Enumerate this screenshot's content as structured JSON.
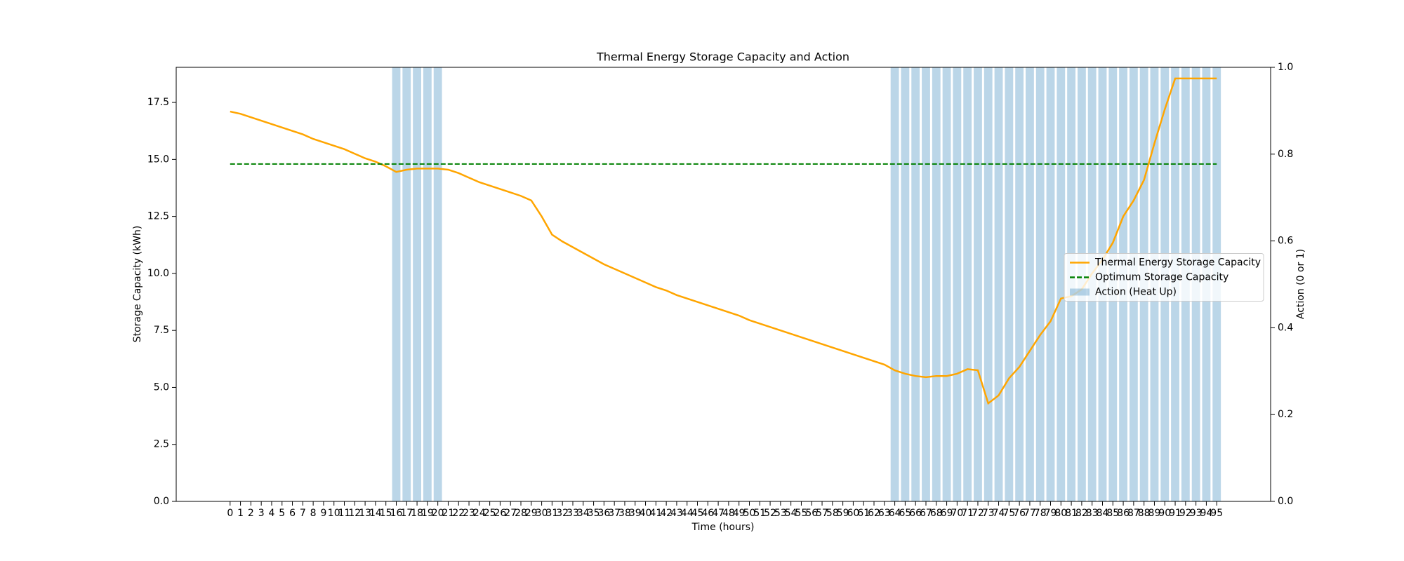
{
  "chart_data": {
    "type": "line_bar",
    "title": "Thermal Energy Storage Capacity and Action",
    "xlabel": "Time (hours)",
    "ylabel": "Storage Capacity (kWh)",
    "y2label": "Action (0 or 1)",
    "x": [
      0,
      1,
      2,
      3,
      4,
      5,
      6,
      7,
      8,
      9,
      10,
      11,
      12,
      13,
      14,
      15,
      16,
      17,
      18,
      19,
      20,
      21,
      22,
      23,
      24,
      25,
      26,
      27,
      28,
      29,
      30,
      31,
      32,
      33,
      34,
      35,
      36,
      37,
      38,
      39,
      40,
      41,
      42,
      43,
      44,
      45,
      46,
      47,
      48,
      49,
      50,
      51,
      52,
      53,
      54,
      55,
      56,
      57,
      58,
      59,
      60,
      61,
      62,
      63,
      64,
      65,
      66,
      67,
      68,
      69,
      70,
      71,
      72,
      73,
      74,
      75,
      76,
      77,
      78,
      79,
      80,
      81,
      82,
      83,
      84,
      85,
      86,
      87,
      88,
      89,
      90,
      91,
      92,
      93,
      94,
      95
    ],
    "xticks": [
      0,
      1,
      2,
      3,
      4,
      5,
      6,
      7,
      8,
      9,
      10,
      11,
      12,
      13,
      14,
      15,
      16,
      17,
      18,
      19,
      20,
      21,
      22,
      23,
      24,
      25,
      26,
      27,
      28,
      29,
      30,
      31,
      32,
      33,
      34,
      35,
      36,
      37,
      38,
      39,
      40,
      41,
      42,
      43,
      44,
      45,
      46,
      47,
      48,
      49,
      50,
      51,
      52,
      53,
      54,
      55,
      56,
      57,
      58,
      59,
      60,
      61,
      62,
      63,
      64,
      65,
      66,
      67,
      68,
      69,
      70,
      71,
      72,
      73,
      74,
      75,
      76,
      77,
      78,
      79,
      80,
      81,
      82,
      83,
      84,
      85,
      86,
      87,
      88,
      89,
      90,
      91,
      92,
      93,
      94,
      95
    ],
    "xlim": [
      -5.19,
      100.19
    ],
    "ylim": [
      0,
      19.04
    ],
    "yticks": [
      {
        "value": 0,
        "label": "0.0"
      },
      2.5,
      {
        "value": 5,
        "label": "5.0"
      },
      7.5,
      {
        "value": 10,
        "label": "10.0"
      },
      12.5,
      {
        "value": 15,
        "label": "15.0"
      },
      17.5
    ],
    "y2lim": [
      0,
      1
    ],
    "y2ticks": [
      {
        "value": 0,
        "label": "0.0"
      },
      0.2,
      0.4,
      0.6,
      0.8,
      {
        "value": 1,
        "label": "1.0"
      }
    ],
    "legend": "center right",
    "series": [
      {
        "name": "Action (Heat Up)",
        "kind": "bar",
        "axis": "y2",
        "color": "#1f77b4",
        "alpha": 0.3,
        "bar_width": 0.8,
        "values": [
          0,
          0,
          0,
          0,
          0,
          0,
          0,
          0,
          0,
          0,
          0,
          0,
          0,
          0,
          0,
          0,
          1,
          1,
          1,
          1,
          1,
          0,
          0,
          0,
          0,
          0,
          0,
          0,
          0,
          0,
          0,
          0,
          0,
          0,
          0,
          0,
          0,
          0,
          0,
          0,
          0,
          0,
          0,
          0,
          0,
          0,
          0,
          0,
          0,
          0,
          0,
          0,
          0,
          0,
          0,
          0,
          0,
          0,
          0,
          0,
          0,
          0,
          0,
          0,
          1,
          1,
          1,
          1,
          1,
          1,
          1,
          1,
          1,
          1,
          1,
          1,
          1,
          1,
          1,
          1,
          1,
          1,
          1,
          1,
          1,
          1,
          1,
          1,
          1,
          1,
          1,
          1,
          1,
          1,
          1,
          1
        ]
      },
      {
        "name": "Thermal Energy Storage Capacity",
        "kind": "line",
        "color": "#ffa500",
        "values": [
          17.1,
          17.0,
          16.85,
          16.7,
          16.55,
          16.4,
          16.25,
          16.1,
          15.9,
          15.75,
          15.6,
          15.45,
          15.25,
          15.05,
          14.9,
          14.7,
          14.45,
          14.55,
          14.6,
          14.6,
          14.6,
          14.55,
          14.4,
          14.2,
          14.0,
          13.85,
          13.7,
          13.55,
          13.4,
          13.2,
          12.5,
          11.7,
          11.4,
          11.15,
          10.9,
          10.65,
          10.4,
          10.2,
          10.0,
          9.8,
          9.6,
          9.4,
          9.25,
          9.05,
          8.9,
          8.75,
          8.6,
          8.45,
          8.3,
          8.15,
          7.95,
          7.8,
          7.65,
          7.5,
          7.35,
          7.2,
          7.05,
          6.9,
          6.75,
          6.6,
          6.45,
          6.3,
          6.15,
          6.0,
          5.75,
          5.6,
          5.5,
          5.45,
          5.5,
          5.5,
          5.6,
          5.8,
          5.75,
          4.3,
          4.65,
          5.4,
          5.9,
          6.6,
          7.3,
          7.9,
          8.9,
          9.0,
          9.3,
          10.0,
          10.6,
          11.35,
          12.5,
          13.2,
          14.1,
          15.7,
          17.2,
          18.55,
          18.55,
          18.55,
          18.55,
          18.55
        ]
      },
      {
        "name": "Optimum Storage Capacity",
        "kind": "hline",
        "color": "#008000",
        "dashed": true,
        "value": 14.8
      }
    ]
  }
}
